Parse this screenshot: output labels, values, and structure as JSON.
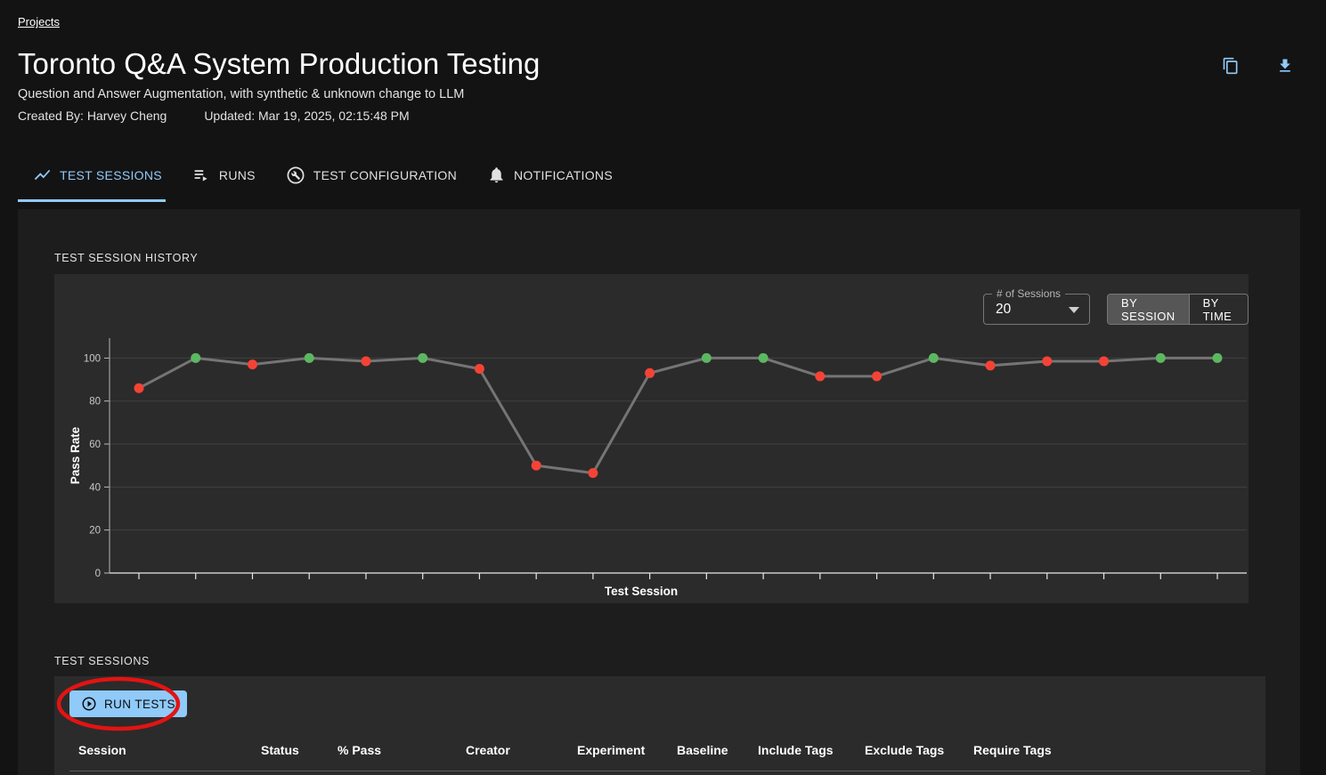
{
  "breadcrumb": {
    "label": "Projects"
  },
  "header": {
    "title": "Toronto Q&A System Production Testing",
    "subtitle": "Question and Answer Augmentation, with synthetic & unknown change to LLM",
    "created_by": "Created By: Harvey Cheng",
    "updated": "Updated: Mar 19, 2025, 02:15:48 PM"
  },
  "tabs": [
    {
      "label": "TEST SESSIONS",
      "icon": "show-chart-icon",
      "active": true
    },
    {
      "label": "RUNS",
      "icon": "playlist-play-icon",
      "active": false
    },
    {
      "label": "TEST CONFIGURATION",
      "icon": "build-circle-icon",
      "active": false
    },
    {
      "label": "NOTIFICATIONS",
      "icon": "bell-icon",
      "active": false
    }
  ],
  "chart_section": {
    "heading": "TEST SESSION HISTORY",
    "sessions_select": {
      "label": "# of Sessions",
      "value": "20"
    },
    "view_toggle": {
      "options": [
        "BY SESSION",
        "BY TIME"
      ],
      "selected": "BY SESSION"
    }
  },
  "chart_data": {
    "type": "line",
    "title": "Test Session History",
    "xlabel": "Test Session",
    "ylabel": "Pass Rate",
    "ylim": [
      0,
      100
    ],
    "yticks": [
      0,
      20,
      40,
      60,
      80,
      100
    ],
    "grid": true,
    "legend": "none",
    "x": [
      1,
      2,
      3,
      4,
      5,
      6,
      7,
      8,
      9,
      10,
      11,
      12,
      13,
      14,
      15,
      16,
      17,
      18,
      19,
      20
    ],
    "values": [
      86,
      100,
      97,
      100,
      98.5,
      100,
      95,
      50,
      46.5,
      93,
      100,
      100,
      91.5,
      91.5,
      100,
      96.5,
      98.5,
      98.5,
      100,
      100
    ],
    "point_status": [
      "fail",
      "pass",
      "fail",
      "pass",
      "fail",
      "pass",
      "fail",
      "fail",
      "fail",
      "fail",
      "pass",
      "pass",
      "fail",
      "fail",
      "pass",
      "fail",
      "fail",
      "fail",
      "pass",
      "pass"
    ],
    "line_color": "#757575",
    "pass_color": "#5cb860",
    "fail_color": "#f44336"
  },
  "sessions_section": {
    "heading": "TEST SESSIONS",
    "run_tests_label": "RUN TESTS",
    "table": {
      "columns": [
        "Session",
        "Status",
        "% Pass",
        "Creator",
        "Experiment",
        "Baseline",
        "Include Tags",
        "Exclude Tags",
        "Require Tags"
      ]
    }
  },
  "colors": {
    "accent": "#90caf9",
    "annotation": "#e31313",
    "panel": "#2b2b2b",
    "section": "#1d1d1d",
    "page": "#131313"
  }
}
